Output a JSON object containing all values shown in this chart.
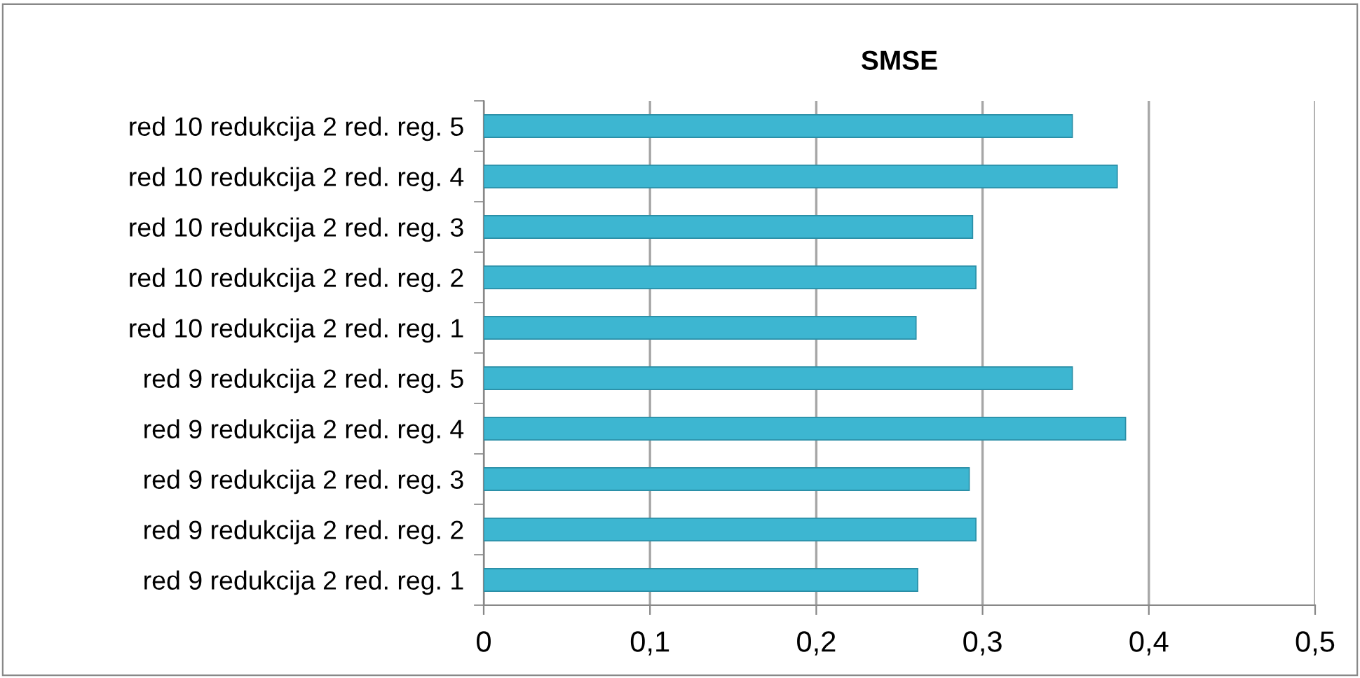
{
  "chart_data": {
    "type": "bar",
    "orientation": "horizontal",
    "title": "SMSE",
    "categories": [
      "red 10 redukcija 2 red. reg. 5",
      "red 10 redukcija 2 red. reg. 4",
      "red 10 redukcija 2 red. reg. 3",
      "red 10 redukcija 2 red. reg. 2",
      "red 10 redukcija 2 red. reg. 1",
      "red 9 redukcija 2 red. reg. 5",
      "red 9 redukcija 2 red. reg. 4",
      "red 9 redukcija 2 red. reg. 3",
      "red 9 redukcija 2 red. reg. 2",
      "red 9 redukcija 2 red. reg. 1"
    ],
    "values": [
      0.354,
      0.381,
      0.294,
      0.296,
      0.26,
      0.354,
      0.386,
      0.292,
      0.296,
      0.261
    ],
    "color": "#3db6d1",
    "xlim": [
      0,
      0.5
    ],
    "xticks": [
      {
        "value": 0,
        "label": "0"
      },
      {
        "value": 0.1,
        "label": "0,1"
      },
      {
        "value": 0.2,
        "label": "0,2"
      },
      {
        "value": 0.3,
        "label": "0,3"
      },
      {
        "value": 0.4,
        "label": "0,4"
      },
      {
        "value": 0.5,
        "label": "0,5"
      }
    ],
    "grid": "x",
    "legend": false
  }
}
